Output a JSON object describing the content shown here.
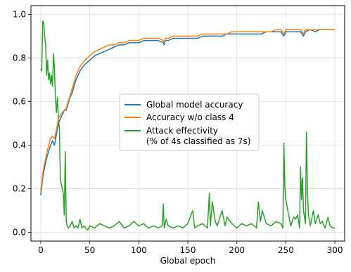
{
  "chart_data": {
    "type": "line",
    "xlabel": "Global epoch",
    "ylabel": "",
    "xlim": [
      -10,
      310
    ],
    "ylim": [
      -0.04,
      1.04
    ],
    "xticks": [
      0,
      50,
      100,
      150,
      200,
      250,
      300
    ],
    "yticks": [
      0.0,
      0.2,
      0.4,
      0.6,
      0.8,
      1.0
    ],
    "xtick_labels": [
      "0",
      "50",
      "100",
      "150",
      "200",
      "250",
      "300"
    ],
    "ytick_labels": [
      "0.0",
      "0.2",
      "0.4",
      "0.6",
      "0.8",
      "1.0"
    ],
    "grid": true,
    "legend_position": "center",
    "series": [
      {
        "name": "Global model accuracy",
        "color": "#1f77b4",
        "x": [
          0,
          2,
          4,
          6,
          8,
          10,
          12,
          14,
          16,
          18,
          20,
          22,
          24,
          26,
          28,
          30,
          32,
          34,
          36,
          38,
          40,
          45,
          50,
          55,
          60,
          65,
          70,
          75,
          80,
          85,
          90,
          95,
          100,
          105,
          110,
          115,
          120,
          125,
          126,
          127,
          130,
          135,
          140,
          145,
          150,
          155,
          160,
          165,
          170,
          175,
          180,
          185,
          190,
          195,
          200,
          205,
          210,
          215,
          220,
          225,
          230,
          235,
          240,
          245,
          248,
          250,
          255,
          260,
          265,
          268,
          270,
          275,
          280,
          285,
          290,
          295,
          300
        ],
        "values": [
          0.17,
          0.25,
          0.3,
          0.34,
          0.37,
          0.4,
          0.42,
          0.4,
          0.45,
          0.5,
          0.52,
          0.54,
          0.56,
          0.56,
          0.59,
          0.62,
          0.64,
          0.67,
          0.7,
          0.72,
          0.74,
          0.77,
          0.79,
          0.81,
          0.82,
          0.83,
          0.84,
          0.85,
          0.86,
          0.86,
          0.87,
          0.87,
          0.87,
          0.88,
          0.88,
          0.88,
          0.88,
          0.87,
          0.86,
          0.88,
          0.88,
          0.89,
          0.89,
          0.89,
          0.89,
          0.89,
          0.89,
          0.9,
          0.9,
          0.9,
          0.9,
          0.9,
          0.91,
          0.91,
          0.91,
          0.91,
          0.91,
          0.91,
          0.91,
          0.91,
          0.92,
          0.92,
          0.92,
          0.92,
          0.9,
          0.92,
          0.92,
          0.92,
          0.92,
          0.9,
          0.92,
          0.93,
          0.92,
          0.93,
          0.93,
          0.93,
          0.93
        ]
      },
      {
        "name": "Accuracy w/o class 4",
        "color": "#ff7f0e",
        "x": [
          0,
          2,
          4,
          6,
          8,
          10,
          12,
          14,
          16,
          18,
          20,
          22,
          24,
          26,
          28,
          30,
          32,
          34,
          36,
          38,
          40,
          45,
          50,
          55,
          60,
          65,
          70,
          75,
          80,
          85,
          90,
          95,
          100,
          105,
          110,
          115,
          120,
          125,
          126,
          127,
          130,
          135,
          140,
          145,
          150,
          155,
          160,
          165,
          170,
          175,
          180,
          185,
          190,
          195,
          200,
          205,
          210,
          215,
          220,
          225,
          230,
          235,
          240,
          245,
          248,
          250,
          255,
          260,
          265,
          268,
          270,
          275,
          280,
          285,
          290,
          295,
          300
        ],
        "values": [
          0.19,
          0.27,
          0.32,
          0.36,
          0.4,
          0.43,
          0.44,
          0.43,
          0.47,
          0.52,
          0.54,
          0.55,
          0.56,
          0.57,
          0.6,
          0.63,
          0.66,
          0.69,
          0.72,
          0.74,
          0.76,
          0.79,
          0.81,
          0.83,
          0.84,
          0.85,
          0.86,
          0.86,
          0.87,
          0.87,
          0.88,
          0.88,
          0.88,
          0.89,
          0.89,
          0.89,
          0.89,
          0.88,
          0.87,
          0.89,
          0.89,
          0.9,
          0.9,
          0.9,
          0.9,
          0.9,
          0.9,
          0.91,
          0.91,
          0.91,
          0.91,
          0.91,
          0.91,
          0.92,
          0.92,
          0.92,
          0.92,
          0.92,
          0.92,
          0.92,
          0.92,
          0.92,
          0.93,
          0.93,
          0.91,
          0.93,
          0.93,
          0.93,
          0.93,
          0.91,
          0.93,
          0.93,
          0.93,
          0.93,
          0.93,
          0.93,
          0.93
        ]
      },
      {
        "name": "Attack effectivity\n(% of 4s classified as 7s)",
        "color": "#2ca02c",
        "x": [
          0,
          1,
          2,
          3,
          4,
          5,
          6,
          7,
          8,
          9,
          10,
          11,
          12,
          13,
          14,
          15,
          16,
          17,
          18,
          19,
          20,
          21,
          22,
          23,
          24,
          25,
          26,
          27,
          28,
          30,
          32,
          34,
          36,
          38,
          40,
          42,
          44,
          46,
          48,
          50,
          55,
          60,
          65,
          70,
          75,
          80,
          85,
          90,
          95,
          100,
          105,
          110,
          115,
          120,
          124,
          125,
          126,
          128,
          130,
          135,
          140,
          145,
          150,
          155,
          157,
          160,
          165,
          170,
          172,
          173,
          175,
          178,
          180,
          185,
          188,
          190,
          195,
          200,
          205,
          210,
          215,
          220,
          222,
          224,
          226,
          230,
          235,
          240,
          245,
          247,
          248,
          249,
          250,
          252,
          255,
          258,
          260,
          262,
          264,
          265,
          266,
          267,
          268,
          270,
          271,
          272,
          273,
          275,
          278,
          280,
          283,
          285,
          287,
          290,
          293,
          295,
          298,
          300
        ],
        "values": [
          0.75,
          0.74,
          0.97,
          0.96,
          0.9,
          0.86,
          0.72,
          0.79,
          0.7,
          0.73,
          0.68,
          0.72,
          0.67,
          0.82,
          0.75,
          0.61,
          0.55,
          0.62,
          0.52,
          0.48,
          0.24,
          0.22,
          0.2,
          0.18,
          0.08,
          0.37,
          0.05,
          0.03,
          0.02,
          0.03,
          0.05,
          0.02,
          0.03,
          0.02,
          0.06,
          0.02,
          0.03,
          0.02,
          0.01,
          0.03,
          0.02,
          0.04,
          0.03,
          0.02,
          0.03,
          0.05,
          0.02,
          0.03,
          0.05,
          0.03,
          0.04,
          0.02,
          0.03,
          0.02,
          0.03,
          0.13,
          0.02,
          0.06,
          0.03,
          0.02,
          0.03,
          0.02,
          0.04,
          0.1,
          0.02,
          0.03,
          0.04,
          0.02,
          0.18,
          0.03,
          0.14,
          0.05,
          0.03,
          0.1,
          0.03,
          0.07,
          0.04,
          0.02,
          0.04,
          0.03,
          0.04,
          0.02,
          0.14,
          0.05,
          0.1,
          0.04,
          0.03,
          0.05,
          0.04,
          0.02,
          0.41,
          0.2,
          0.15,
          0.1,
          0.03,
          0.07,
          0.06,
          0.08,
          0.02,
          0.3,
          0.15,
          0.25,
          0.1,
          0.04,
          0.46,
          0.2,
          0.08,
          0.03,
          0.1,
          0.04,
          0.08,
          0.04,
          0.05,
          0.02,
          0.07,
          0.03,
          0.02,
          0.02
        ]
      }
    ]
  }
}
